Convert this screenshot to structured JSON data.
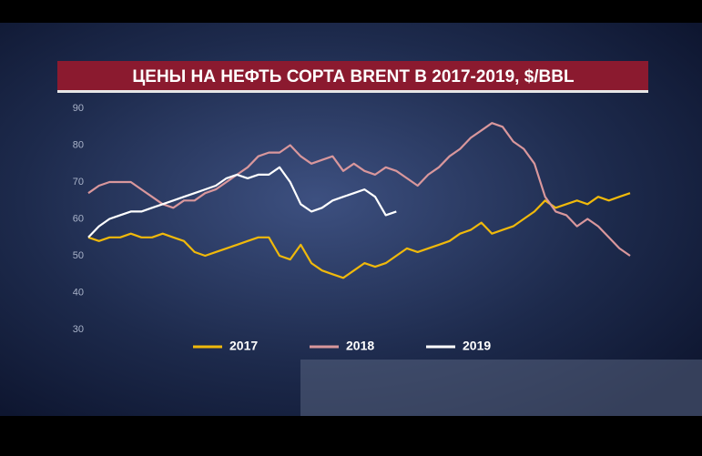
{
  "chart_data": {
    "type": "line",
    "title": "ЦЕНЫ НА НЕФТЬ СОРТА BRENT В 2017-2019, $/BBL",
    "ylim": [
      30,
      90
    ],
    "yticks": [
      30,
      40,
      50,
      60,
      70,
      80,
      90
    ],
    "grid": false,
    "series": [
      {
        "name": "2017",
        "color": "#f0b90b",
        "values": [
          55,
          54,
          55,
          55,
          56,
          55,
          55,
          56,
          55,
          54,
          51,
          50,
          51,
          52,
          53,
          54,
          55,
          55,
          50,
          49,
          53,
          48,
          46,
          45,
          44,
          46,
          48,
          47,
          48,
          50,
          52,
          51,
          52,
          53,
          54,
          56,
          57,
          59,
          56,
          57,
          58,
          60,
          62,
          65,
          63,
          64,
          65,
          64,
          66,
          65,
          66,
          67
        ]
      },
      {
        "name": "2018",
        "color": "#d9979c",
        "values": [
          67,
          69,
          70,
          70,
          70,
          68,
          66,
          64,
          63,
          65,
          65,
          67,
          68,
          70,
          72,
          74,
          77,
          78,
          78,
          80,
          77,
          75,
          76,
          77,
          73,
          75,
          73,
          72,
          74,
          73,
          71,
          69,
          72,
          74,
          77,
          79,
          82,
          84,
          86,
          85,
          81,
          79,
          75,
          66,
          62,
          61,
          58,
          60,
          58,
          55,
          52,
          50
        ]
      },
      {
        "name": "2019",
        "color": "#ffffff",
        "values": [
          55,
          58,
          60,
          61,
          62,
          62,
          63,
          64,
          65,
          66,
          67,
          68,
          69,
          71,
          72,
          71,
          72,
          72,
          74,
          70,
          64,
          62,
          63,
          65,
          66,
          67,
          68,
          66,
          61,
          62,
          null,
          null,
          null,
          null,
          null,
          null,
          null,
          null,
          null,
          null,
          null,
          null,
          null,
          null,
          null,
          null,
          null,
          null,
          null,
          null,
          null,
          null
        ]
      }
    ]
  }
}
